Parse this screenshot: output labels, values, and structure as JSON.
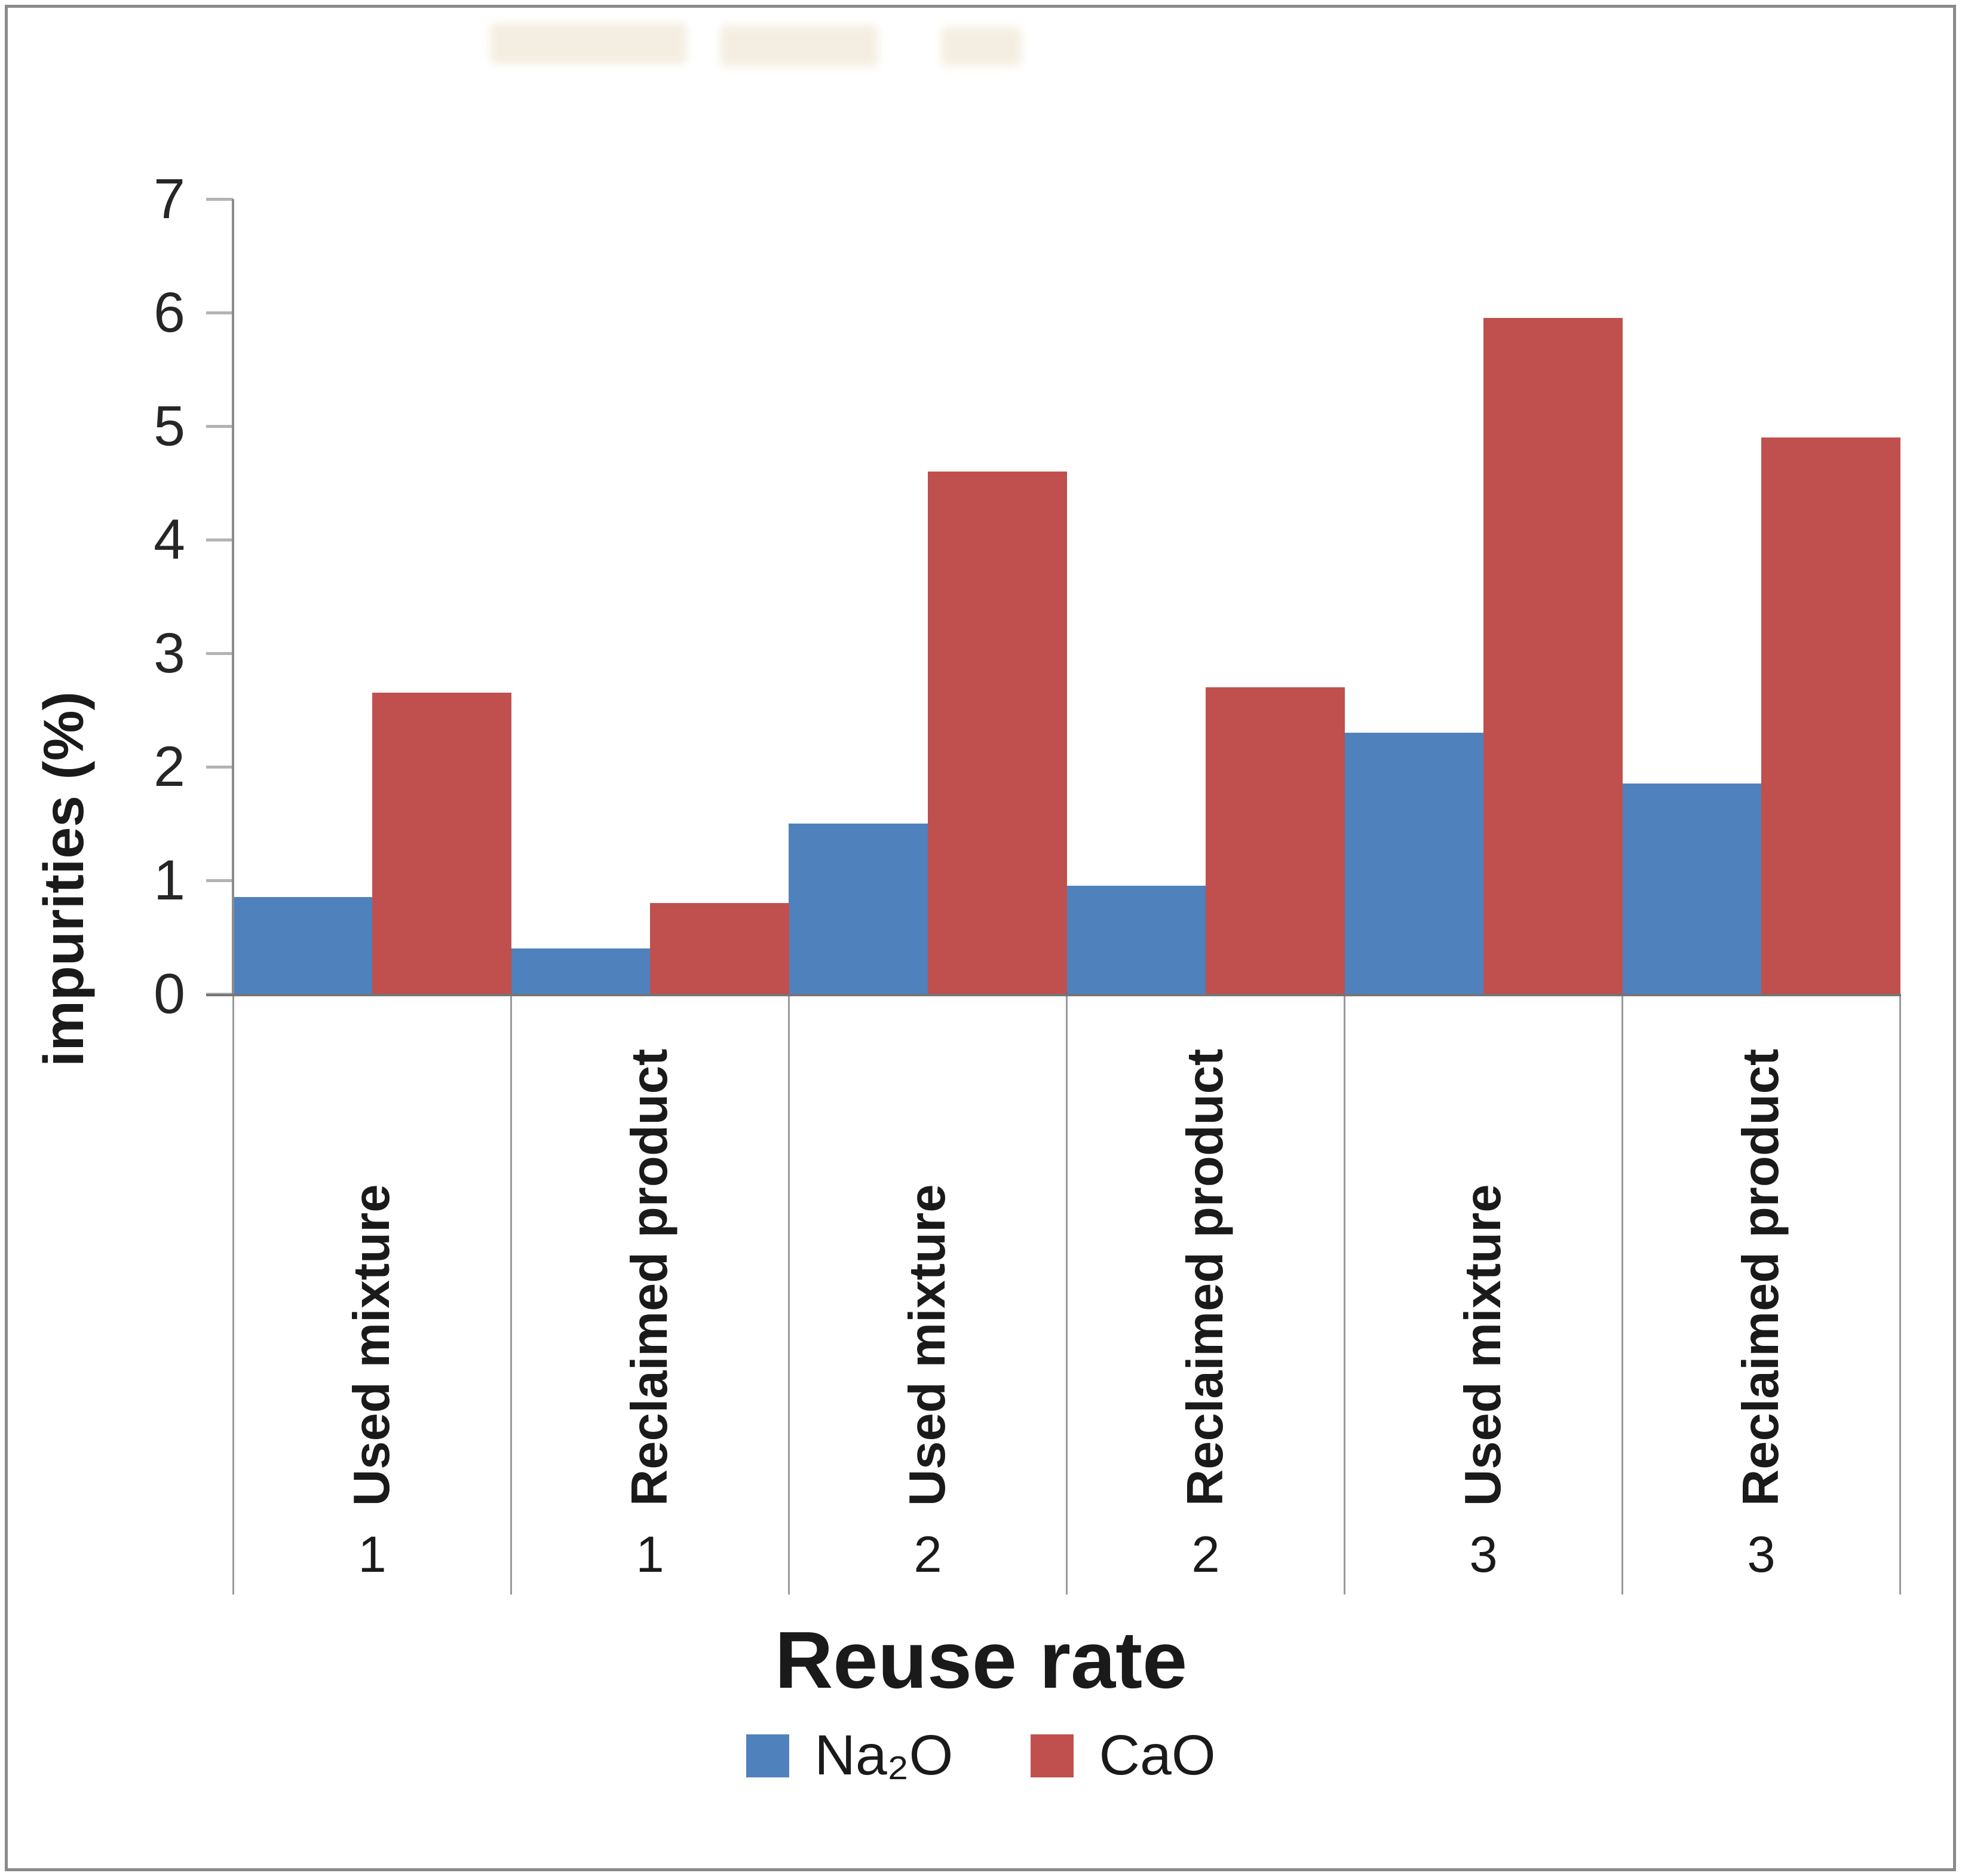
{
  "figure": {
    "ylabel": "impurities (%)",
    "xlabel": "Reuse rate"
  },
  "legend": {
    "items": [
      {
        "label": "Na₂O",
        "color": "#4f81bd"
      },
      {
        "label": "CaO",
        "color": "#c0504d"
      }
    ]
  },
  "chart_data": {
    "type": "bar",
    "title": "",
    "xlabel": "Reuse rate",
    "ylabel": "impurities (%)",
    "ylim": [
      0,
      7
    ],
    "yticks": [
      0,
      1,
      2,
      3,
      4,
      5,
      6,
      7
    ],
    "grid": false,
    "legend_position": "bottom-center",
    "categories": [
      {
        "label": "Used mixture",
        "group": "1"
      },
      {
        "label": "Reclaimed product",
        "group": "1"
      },
      {
        "label": "Used mixture",
        "group": "2"
      },
      {
        "label": "Reclaimed product",
        "group": "2"
      },
      {
        "label": "Used mixture",
        "group": "3"
      },
      {
        "label": "Reclaimed product",
        "group": "3"
      }
    ],
    "series": [
      {
        "name": "Na2O",
        "display": "Na₂O",
        "color": "#4f81bd",
        "values": [
          0.85,
          0.4,
          1.5,
          0.95,
          2.3,
          1.85
        ]
      },
      {
        "name": "CaO",
        "display": "CaO",
        "color": "#c0504d",
        "values": [
          2.65,
          0.8,
          4.6,
          2.7,
          5.95,
          4.9
        ]
      }
    ]
  },
  "style": {
    "axis_color": "#8c8c8c",
    "baseline_color": "#757575",
    "separator_color": "#9a9a9a",
    "tick_color": "#b3b3b3",
    "text_color": "#1a1a1a"
  }
}
